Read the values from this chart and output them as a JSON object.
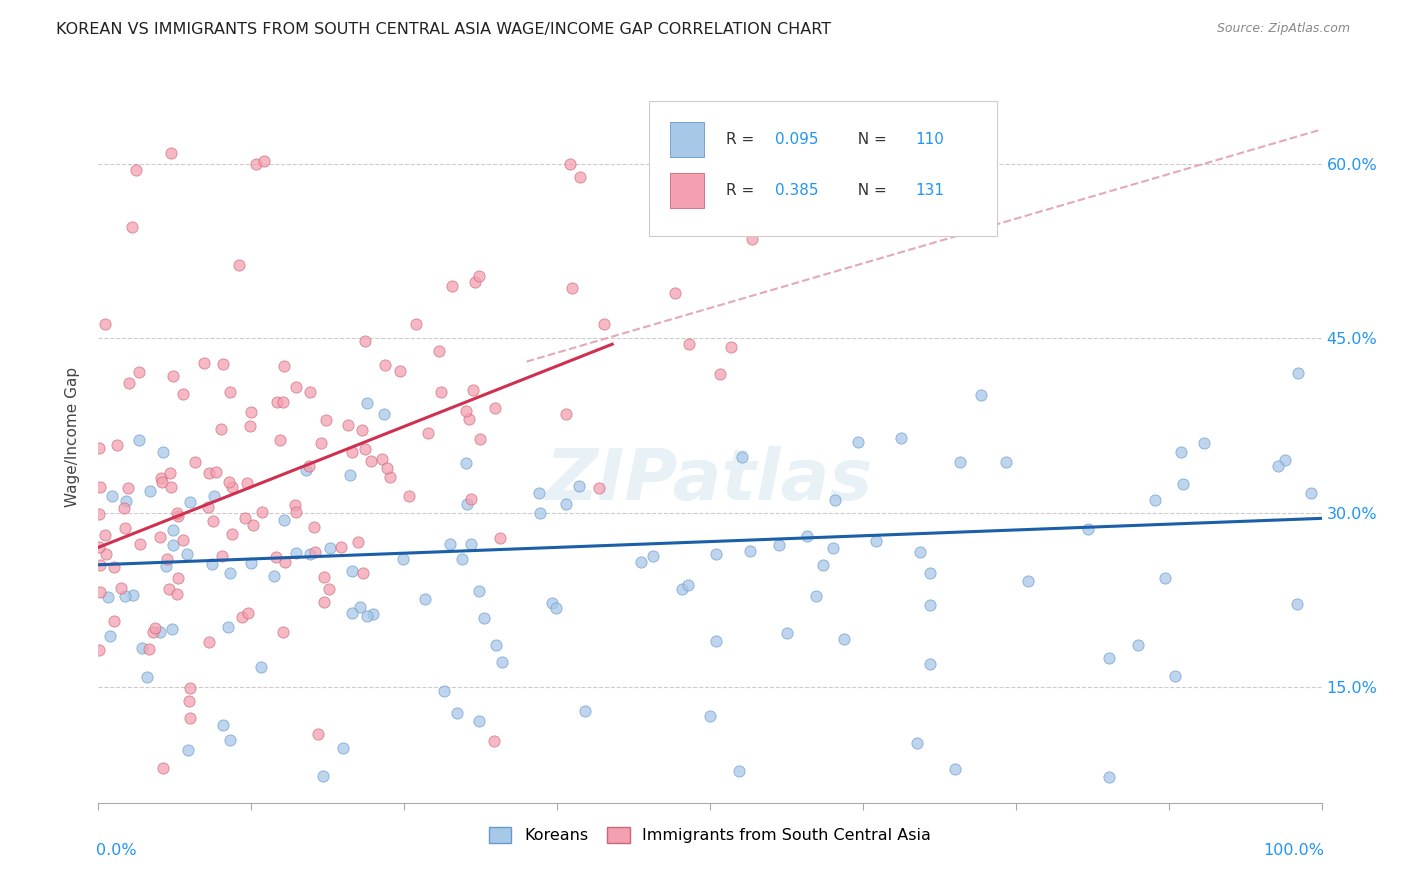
{
  "title": "KOREAN VS IMMIGRANTS FROM SOUTH CENTRAL ASIA WAGE/INCOME GAP CORRELATION CHART",
  "source": "Source: ZipAtlas.com",
  "ylabel": "Wage/Income Gap",
  "ytick_labels": [
    "15.0%",
    "30.0%",
    "45.0%",
    "60.0%"
  ],
  "ytick_values": [
    0.15,
    0.3,
    0.45,
    0.6
  ],
  "xlim": [
    0.0,
    1.0
  ],
  "ylim": [
    0.05,
    0.68
  ],
  "watermark": "ZIPatlas",
  "blue_color": "#a8c8e8",
  "blue_edge_color": "#6699cc",
  "pink_color": "#f4a0b0",
  "pink_edge_color": "#cc6677",
  "blue_line_color": "#1a5fa8",
  "pink_line_color": "#d03050",
  "dashed_line_color": "#e0a0b0",
  "legend_label_blue": "Koreans",
  "legend_label_pink": "Immigrants from South Central Asia",
  "R_blue": 0.095,
  "N_blue": 110,
  "R_pink": 0.385,
  "N_pink": 131,
  "blue_line_x": [
    0.0,
    1.0
  ],
  "blue_line_y": [
    0.255,
    0.295
  ],
  "pink_line_x": [
    0.0,
    0.42
  ],
  "pink_line_y": [
    0.27,
    0.445
  ],
  "dashed_line_x": [
    0.35,
    1.0
  ],
  "dashed_line_y": [
    0.43,
    0.63
  ]
}
